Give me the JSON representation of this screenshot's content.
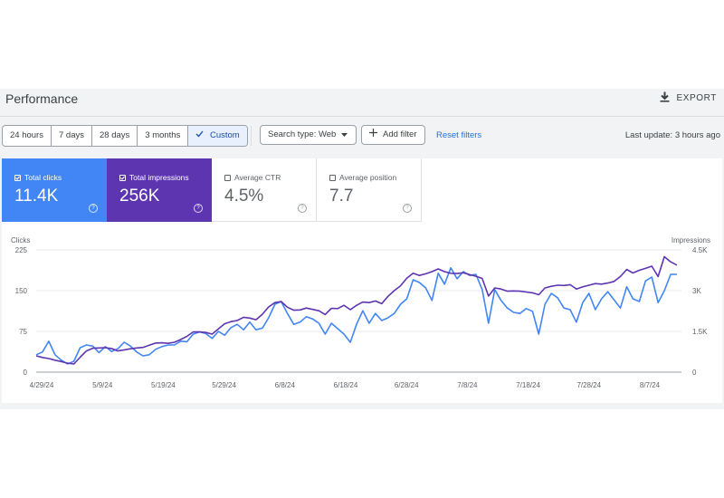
{
  "header": {
    "title": "Performance",
    "export_label": "EXPORT"
  },
  "toolbar": {
    "date_ranges": [
      {
        "label": "24 hours",
        "active": false
      },
      {
        "label": "7 days",
        "active": false
      },
      {
        "label": "28 days",
        "active": false
      },
      {
        "label": "3 months",
        "active": false
      },
      {
        "label": "Custom",
        "active": true
      }
    ],
    "search_type_label": "Search type: Web",
    "add_filter_label": "Add filter",
    "reset_filters_label": "Reset filters",
    "last_update": "Last update: 3 hours ago"
  },
  "metrics": [
    {
      "label": "Total clicks",
      "value": "11.4K",
      "checked": true,
      "color": "#4285f4"
    },
    {
      "label": "Total impressions",
      "value": "256K",
      "checked": true,
      "color": "#5e35b1"
    },
    {
      "label": "Average CTR",
      "value": "4.5%",
      "checked": false
    },
    {
      "label": "Average position",
      "value": "7.7",
      "checked": false
    }
  ],
  "chart_data": {
    "type": "line",
    "left_axis_title": "Clicks",
    "right_axis_title": "Impressions",
    "y_left_ticks": [
      "225",
      "150",
      "75",
      "0"
    ],
    "y_right_ticks": [
      "4.5K",
      "3K",
      "1.5K",
      "0"
    ],
    "y_left_range": [
      0,
      225
    ],
    "y_right_range": [
      0,
      4500
    ],
    "x_tick_labels": [
      "4/29/24",
      "5/9/24",
      "5/19/24",
      "5/29/24",
      "6/8/24",
      "6/18/24",
      "6/28/24",
      "7/8/24",
      "7/18/24",
      "7/28/24",
      "8/7/24"
    ],
    "grid": true,
    "series": [
      {
        "name": "Clicks",
        "axis": "left",
        "color": "#4285f4",
        "values": [
          32,
          37,
          57,
          32,
          22,
          15,
          20,
          45,
          50,
          48,
          36,
          47,
          38,
          43,
          55,
          48,
          37,
          30,
          32,
          42,
          47,
          50,
          50,
          57,
          56,
          70,
          74,
          71,
          62,
          75,
          68,
          82,
          88,
          78,
          92,
          78,
          81,
          100,
          125,
          130,
          108,
          88,
          92,
          102,
          98,
          90,
          70,
          90,
          80,
          70,
          55,
          88,
          113,
          90,
          108,
          95,
          100,
          108,
          125,
          135,
          170,
          165,
          155,
          132,
          182,
          162,
          192,
          172,
          185,
          178,
          180,
          152,
          90,
          152,
          132,
          118,
          110,
          108,
          117,
          112,
          70,
          125,
          145,
          137,
          118,
          115,
          92,
          128,
          145,
          115,
          135,
          148,
          133,
          118,
          157,
          135,
          130,
          168,
          175,
          128,
          150,
          180,
          180
        ]
      },
      {
        "name": "Impressions",
        "axis": "right",
        "color": "#5e35b1",
        "values": [
          600,
          540,
          500,
          440,
          390,
          330,
          300,
          550,
          780,
          880,
          890,
          900,
          870,
          780,
          820,
          860,
          890,
          910,
          990,
          1070,
          1080,
          1060,
          1100,
          1200,
          1320,
          1480,
          1480,
          1460,
          1400,
          1590,
          1780,
          1860,
          1900,
          2020,
          1990,
          1930,
          2130,
          2400,
          2560,
          2600,
          2390,
          2280,
          2290,
          2360,
          2310,
          2260,
          2120,
          2350,
          2340,
          2460,
          2300,
          2460,
          2580,
          2560,
          2620,
          2520,
          2790,
          3000,
          3180,
          3460,
          3640,
          3560,
          3620,
          3700,
          3800,
          3700,
          3640,
          3630,
          3660,
          3590,
          3530,
          3450,
          2800,
          3100,
          3060,
          2980,
          2990,
          2980,
          2950,
          2920,
          2850,
          3100,
          3160,
          3200,
          3190,
          3220,
          3060,
          3140,
          3200,
          3260,
          3240,
          3280,
          3340,
          3520,
          3780,
          3650,
          3750,
          3820,
          3900,
          3520,
          4250,
          4060,
          3940
        ]
      }
    ]
  }
}
